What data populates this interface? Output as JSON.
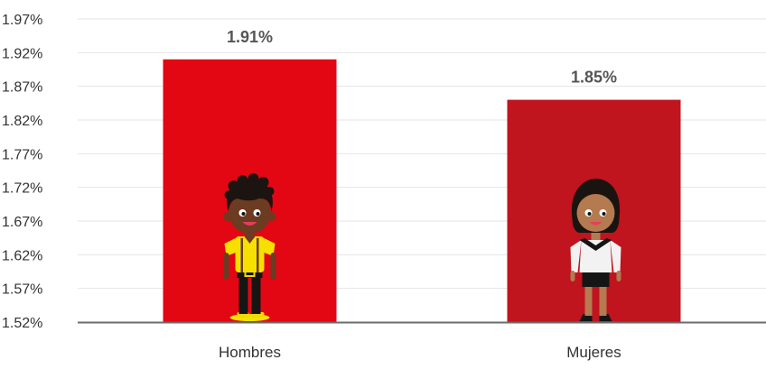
{
  "chart_data": {
    "type": "bar",
    "categories": [
      "Hombres",
      "Mujeres"
    ],
    "values": [
      1.91,
      1.85
    ],
    "data_labels": [
      "1.91%",
      "1.85%"
    ],
    "colors": [
      "#e30613",
      "#c0141f"
    ],
    "ylim": [
      1.52,
      1.97
    ],
    "yticks": [
      1.52,
      1.57,
      1.62,
      1.67,
      1.72,
      1.77,
      1.82,
      1.87,
      1.92,
      1.97
    ],
    "ytick_labels": [
      "1.52%",
      "1.57%",
      "1.62%",
      "1.67%",
      "1.72%",
      "1.77%",
      "1.82%",
      "1.87%",
      "1.92%",
      "1.97%"
    ],
    "grid": true,
    "icons": [
      "boy-illustration",
      "girl-illustration"
    ],
    "title": "",
    "xlabel": "",
    "ylabel": ""
  }
}
